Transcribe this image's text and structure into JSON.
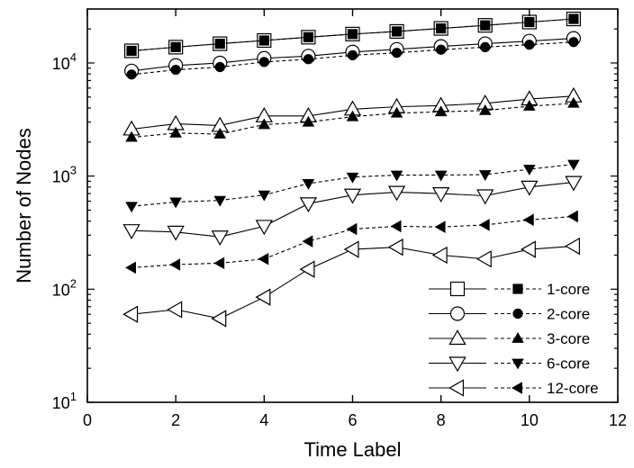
{
  "chart_data": {
    "type": "line",
    "xlabel": "Time Label",
    "ylabel": "Number of Nodes",
    "xlim": [
      0,
      12
    ],
    "ylim": [
      10,
      30000
    ],
    "yscale": "log",
    "x_ticks": [
      0,
      2,
      4,
      6,
      8,
      10,
      12
    ],
    "y_ticks": [
      {
        "value": 10,
        "base": "10",
        "exp": "1"
      },
      {
        "value": 100,
        "base": "10",
        "exp": "2"
      },
      {
        "value": 1000,
        "base": "10",
        "exp": "3"
      },
      {
        "value": 10000,
        "base": "10",
        "exp": "4"
      }
    ],
    "grid": false,
    "legend_position": "bottom-right",
    "x": [
      1,
      2,
      3,
      4,
      5,
      6,
      7,
      8,
      9,
      10,
      11
    ],
    "series": [
      {
        "name": "1-core",
        "marker": "square",
        "values": [
          12800,
          13800,
          14800,
          15800,
          16900,
          18000,
          19000,
          20200,
          21500,
          23000,
          24500
        ]
      },
      {
        "name": "1-core",
        "marker": "square",
        "values": [
          12800,
          13800,
          14800,
          15800,
          16900,
          18000,
          19000,
          20200,
          21500,
          23000,
          24500
        ]
      },
      {
        "name": "2-core",
        "marker": "circle",
        "values": [
          8500,
          9500,
          10000,
          11000,
          11500,
          12500,
          13200,
          14000,
          14800,
          15600,
          16500
        ]
      },
      {
        "name": "2-core",
        "marker": "circle",
        "values": [
          7900,
          8700,
          9200,
          10200,
          10800,
          11700,
          12300,
          13100,
          13800,
          14500,
          15300
        ]
      },
      {
        "name": "3-core",
        "marker": "triangle-up",
        "values": [
          2600,
          2900,
          2800,
          3400,
          3400,
          3900,
          4100,
          4200,
          4400,
          4800,
          5100
        ]
      },
      {
        "name": "3-core",
        "marker": "triangle-up",
        "values": [
          2200,
          2400,
          2350,
          2850,
          3000,
          3350,
          3600,
          3700,
          3800,
          4150,
          4400
        ]
      },
      {
        "name": "6-core",
        "marker": "triangle-down",
        "values": [
          330,
          320,
          290,
          360,
          570,
          680,
          720,
          700,
          670,
          800,
          880
        ]
      },
      {
        "name": "6-core",
        "marker": "triangle-down",
        "values": [
          540,
          590,
          610,
          680,
          860,
          980,
          1020,
          1020,
          1030,
          1150,
          1270
        ]
      },
      {
        "name": "12-core",
        "marker": "triangle-left",
        "values": [
          60,
          66,
          55,
          85,
          150,
          225,
          235,
          200,
          185,
          225,
          240
        ]
      },
      {
        "name": "12-core",
        "marker": "triangle-left",
        "values": [
          155,
          165,
          170,
          185,
          265,
          340,
          360,
          355,
          370,
          410,
          440
        ]
      }
    ]
  }
}
